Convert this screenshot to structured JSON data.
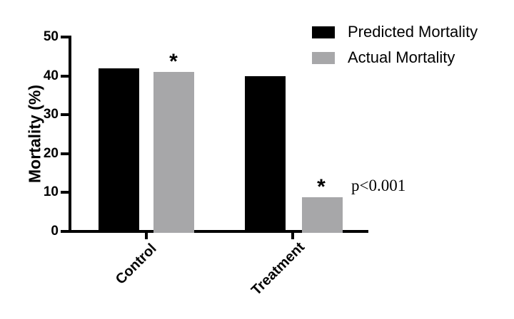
{
  "chart_data": {
    "type": "bar",
    "title": "",
    "categories": [
      "Control",
      "Treatment"
    ],
    "series": [
      {
        "name": "Predicted Mortality",
        "color": "#000000",
        "values": [
          42,
          40
        ]
      },
      {
        "name": "Actual Mortality",
        "color": "#A7A7A9",
        "values": [
          41,
          9
        ]
      }
    ],
    "ylabel": "Mortality (%)",
    "ylim": [
      0,
      50
    ],
    "yticks": [
      50,
      40,
      30,
      20,
      10,
      0
    ],
    "grid": false,
    "legend_position": "top-right",
    "annotations": [
      {
        "text": "*",
        "over": "Control / Actual Mortality bar"
      },
      {
        "text": "*",
        "over": "Treatment / Actual Mortality bar"
      },
      {
        "text": "p<0.001",
        "near": "right of Treatment bars"
      }
    ]
  },
  "axis": {
    "ylabel": "Mortality (%)",
    "yticks": [
      "50",
      "40",
      "30",
      "20",
      "10",
      "0"
    ],
    "categories": [
      "Control",
      "Treatment"
    ]
  },
  "legend": {
    "items": [
      {
        "label": "Predicted Mortality",
        "color": "#000000"
      },
      {
        "label": "Actual Mortality",
        "color": "#A7A7A9"
      }
    ]
  },
  "annotations": {
    "star_control": "*",
    "star_treatment": "*",
    "p_value": "p<0.001"
  }
}
